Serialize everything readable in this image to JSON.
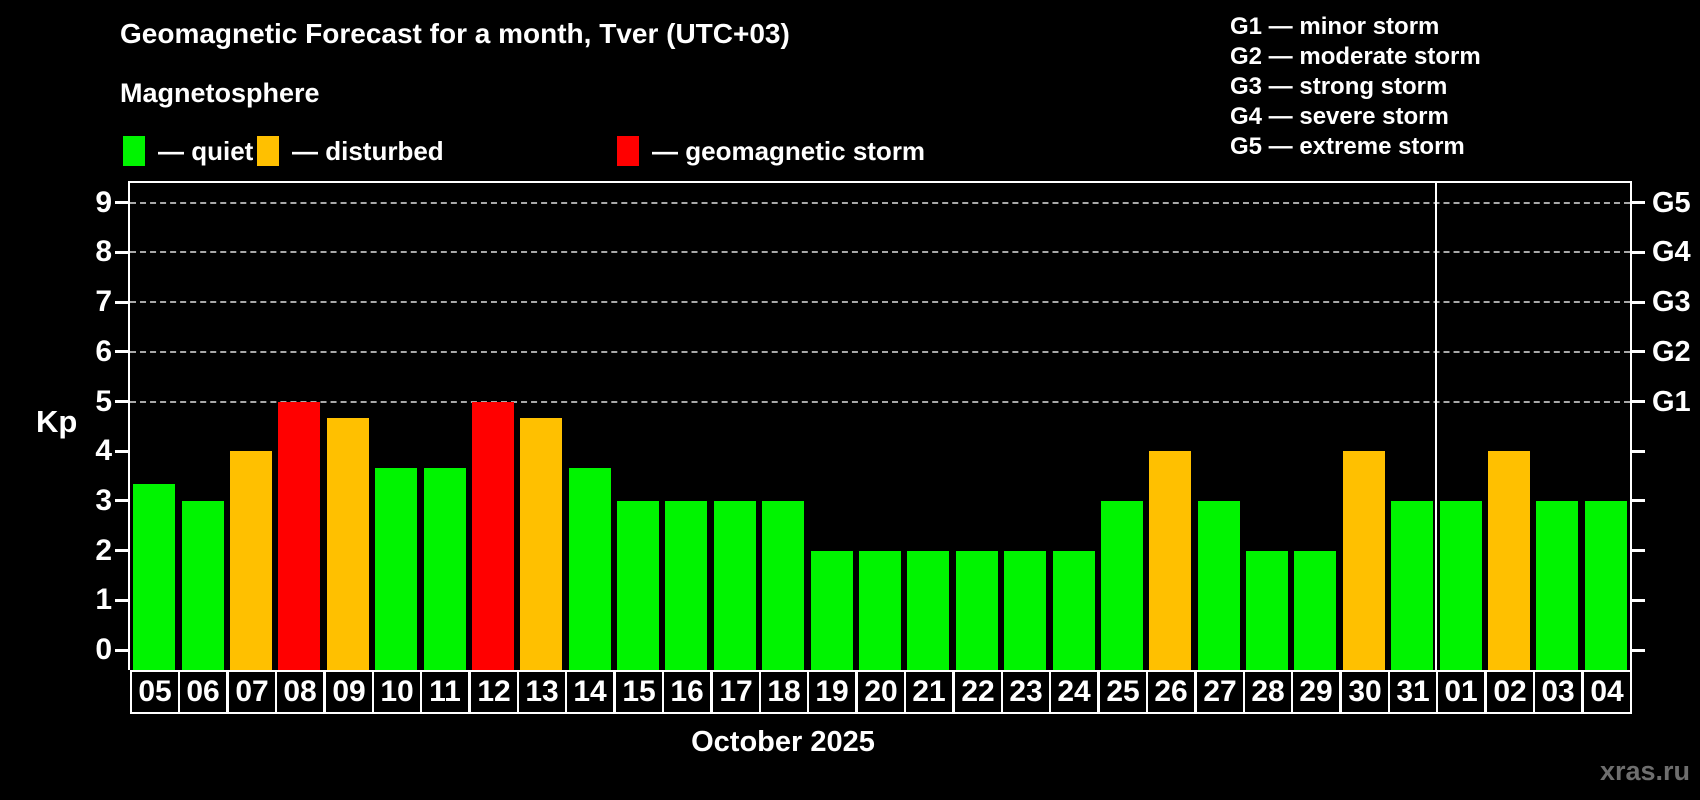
{
  "title": "Geomagnetic Forecast for a month, Tver (UTC+03)",
  "subtitle": "Magnetosphere",
  "kp_axis_label": "Kp",
  "month_label": "October 2025",
  "watermark": "xras.ru",
  "colors": {
    "quiet": "#00f400",
    "disturbed": "#ffc000",
    "storm": "#ff0000",
    "grid": "#a8a8a8",
    "axis": "#ffffff",
    "background": "#000000",
    "watermark": "#6e6e6e"
  },
  "legend": {
    "items": [
      {
        "status": "quiet",
        "label": "— quiet"
      },
      {
        "status": "disturbed",
        "label": "— disturbed"
      },
      {
        "status": "storm",
        "label": "— geomagnetic storm"
      }
    ]
  },
  "storm_scale_legend": [
    "G1 — minor storm",
    "G2 — moderate storm",
    "G3 — strong storm",
    "G4 — severe storm",
    "G5 — extreme storm"
  ],
  "axis": {
    "y_ticks": [
      "0",
      "1",
      "2",
      "3",
      "4",
      "5",
      "6",
      "7",
      "8",
      "9"
    ],
    "right_labels": [
      "G1",
      "G2",
      "G3",
      "G4",
      "G5"
    ],
    "ylim": [
      0,
      9.4
    ]
  },
  "chart_data": {
    "type": "bar",
    "title": "Geomagnetic Forecast for a month, Tver (UTC+03)",
    "subtitle": "Magnetosphere",
    "xlabel": "October 2025",
    "ylabel": "Kp",
    "ylim": [
      0,
      9.4
    ],
    "grid": "horizontal dashed lines at Kp 5,6,7,8,9 (G1–G5)",
    "legend_position": "top",
    "categories": [
      "05",
      "06",
      "07",
      "08",
      "09",
      "10",
      "11",
      "12",
      "13",
      "14",
      "15",
      "16",
      "17",
      "18",
      "19",
      "20",
      "21",
      "22",
      "23",
      "24",
      "25",
      "26",
      "27",
      "28",
      "29",
      "30",
      "31",
      "01",
      "02",
      "03",
      "04"
    ],
    "values": [
      3.33,
      3,
      4,
      5,
      4.67,
      3.67,
      3.67,
      5,
      4.67,
      3.67,
      3,
      3,
      3,
      3,
      2,
      2,
      2,
      2,
      2,
      2,
      3,
      4,
      3,
      2,
      2,
      4,
      3,
      3,
      4,
      3,
      3
    ],
    "statuses": [
      "quiet",
      "quiet",
      "disturbed",
      "storm",
      "disturbed",
      "quiet",
      "quiet",
      "storm",
      "disturbed",
      "quiet",
      "quiet",
      "quiet",
      "quiet",
      "quiet",
      "quiet",
      "quiet",
      "quiet",
      "quiet",
      "quiet",
      "quiet",
      "quiet",
      "disturbed",
      "quiet",
      "quiet",
      "quiet",
      "disturbed",
      "quiet",
      "quiet",
      "disturbed",
      "quiet",
      "quiet"
    ],
    "month_separator_after_index": 26
  }
}
